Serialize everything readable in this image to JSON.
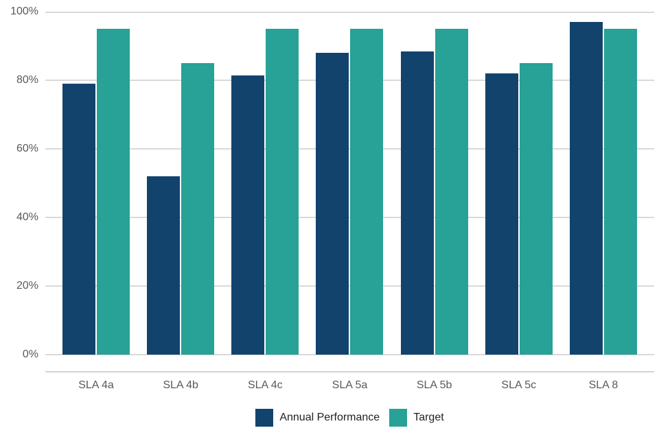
{
  "chart_data": {
    "type": "bar",
    "title": "",
    "xlabel": "",
    "ylabel": "",
    "categories": [
      "SLA 4a",
      "SLA 4b",
      "SLA 4c",
      "SLA 5a",
      "SLA 5b",
      "SLA 5c",
      "SLA 8"
    ],
    "series": [
      {
        "name": "Annual Performance",
        "color": "#12436D",
        "values": [
          79,
          52,
          81.5,
          88,
          88.5,
          82,
          97
        ]
      },
      {
        "name": "Target",
        "color": "#28A197",
        "values": [
          95,
          85,
          95,
          95,
          95,
          85,
          95
        ]
      }
    ],
    "ylim": [
      0,
      100
    ],
    "y_ticks": [
      {
        "value": 0,
        "label": "0%"
      },
      {
        "value": 20,
        "label": "20%"
      },
      {
        "value": 40,
        "label": "40%"
      },
      {
        "value": 60,
        "label": "60%"
      },
      {
        "value": 80,
        "label": "80%"
      },
      {
        "value": 100,
        "label": "100%"
      }
    ],
    "grid": true,
    "legend_position": "bottom"
  },
  "colors": {
    "background": "#FFFFFF",
    "annual_performance": "#12436D",
    "target": "#28A197",
    "gridline": "#D9D9D9",
    "axis_line": "#D3D3D3",
    "tick_label": "#595959",
    "legend_text": "#1F1F1F"
  }
}
